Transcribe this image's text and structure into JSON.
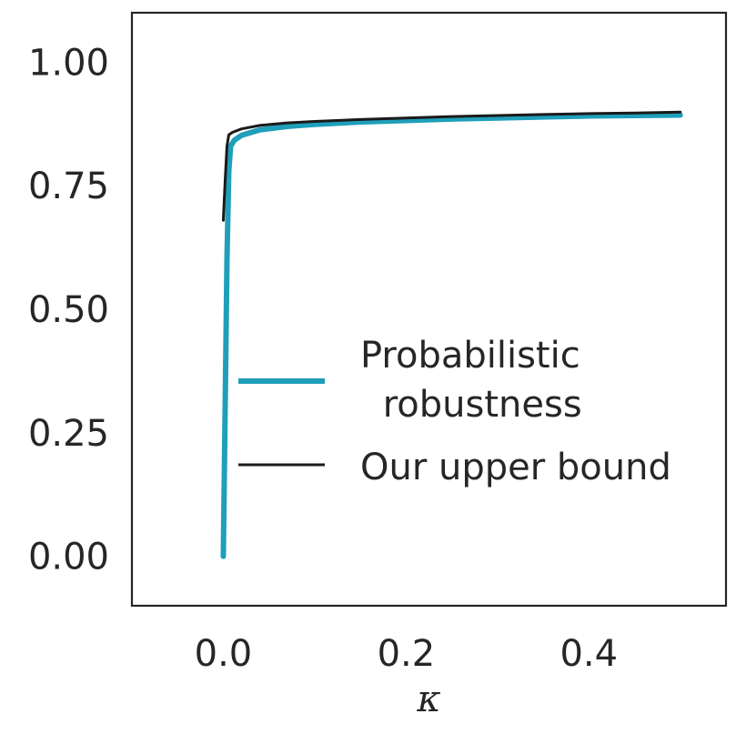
{
  "chart_data": {
    "type": "line",
    "title": "",
    "xlabel": "κ",
    "ylabel": "",
    "xlim": [
      -0.1,
      0.55
    ],
    "ylim": [
      -0.1,
      1.1
    ],
    "xticks": [
      0.0,
      0.2,
      0.4
    ],
    "xtick_labels": [
      "0.0",
      "0.2",
      "0.4"
    ],
    "yticks": [
      0.0,
      0.25,
      0.5,
      0.75,
      1.0
    ],
    "ytick_labels": [
      "0.00",
      "0.25",
      "0.50",
      "0.75",
      "1.00"
    ],
    "grid": false,
    "legend_position": "center-right",
    "series": [
      {
        "name": "Probabilistic\n robustness",
        "color": "#1f9fba",
        "x": [
          0.0,
          0.002,
          0.004,
          0.006,
          0.008,
          0.012,
          0.02,
          0.04,
          0.07,
          0.1,
          0.15,
          0.2,
          0.25,
          0.3,
          0.35,
          0.4,
          0.45,
          0.5
        ],
        "y": [
          0.0,
          0.3,
          0.6,
          0.78,
          0.83,
          0.842,
          0.852,
          0.863,
          0.87,
          0.874,
          0.879,
          0.882,
          0.885,
          0.887,
          0.889,
          0.891,
          0.892,
          0.893
        ]
      },
      {
        "name": "Our upper bound",
        "color": "#1a1a1a",
        "x": [
          0.0,
          0.002,
          0.004,
          0.006,
          0.01,
          0.02,
          0.04,
          0.07,
          0.1,
          0.15,
          0.2,
          0.25,
          0.3,
          0.35,
          0.4,
          0.45,
          0.5
        ],
        "y": [
          0.68,
          0.76,
          0.83,
          0.853,
          0.858,
          0.865,
          0.872,
          0.877,
          0.88,
          0.884,
          0.887,
          0.89,
          0.892,
          0.894,
          0.896,
          0.897,
          0.899
        ]
      }
    ]
  }
}
